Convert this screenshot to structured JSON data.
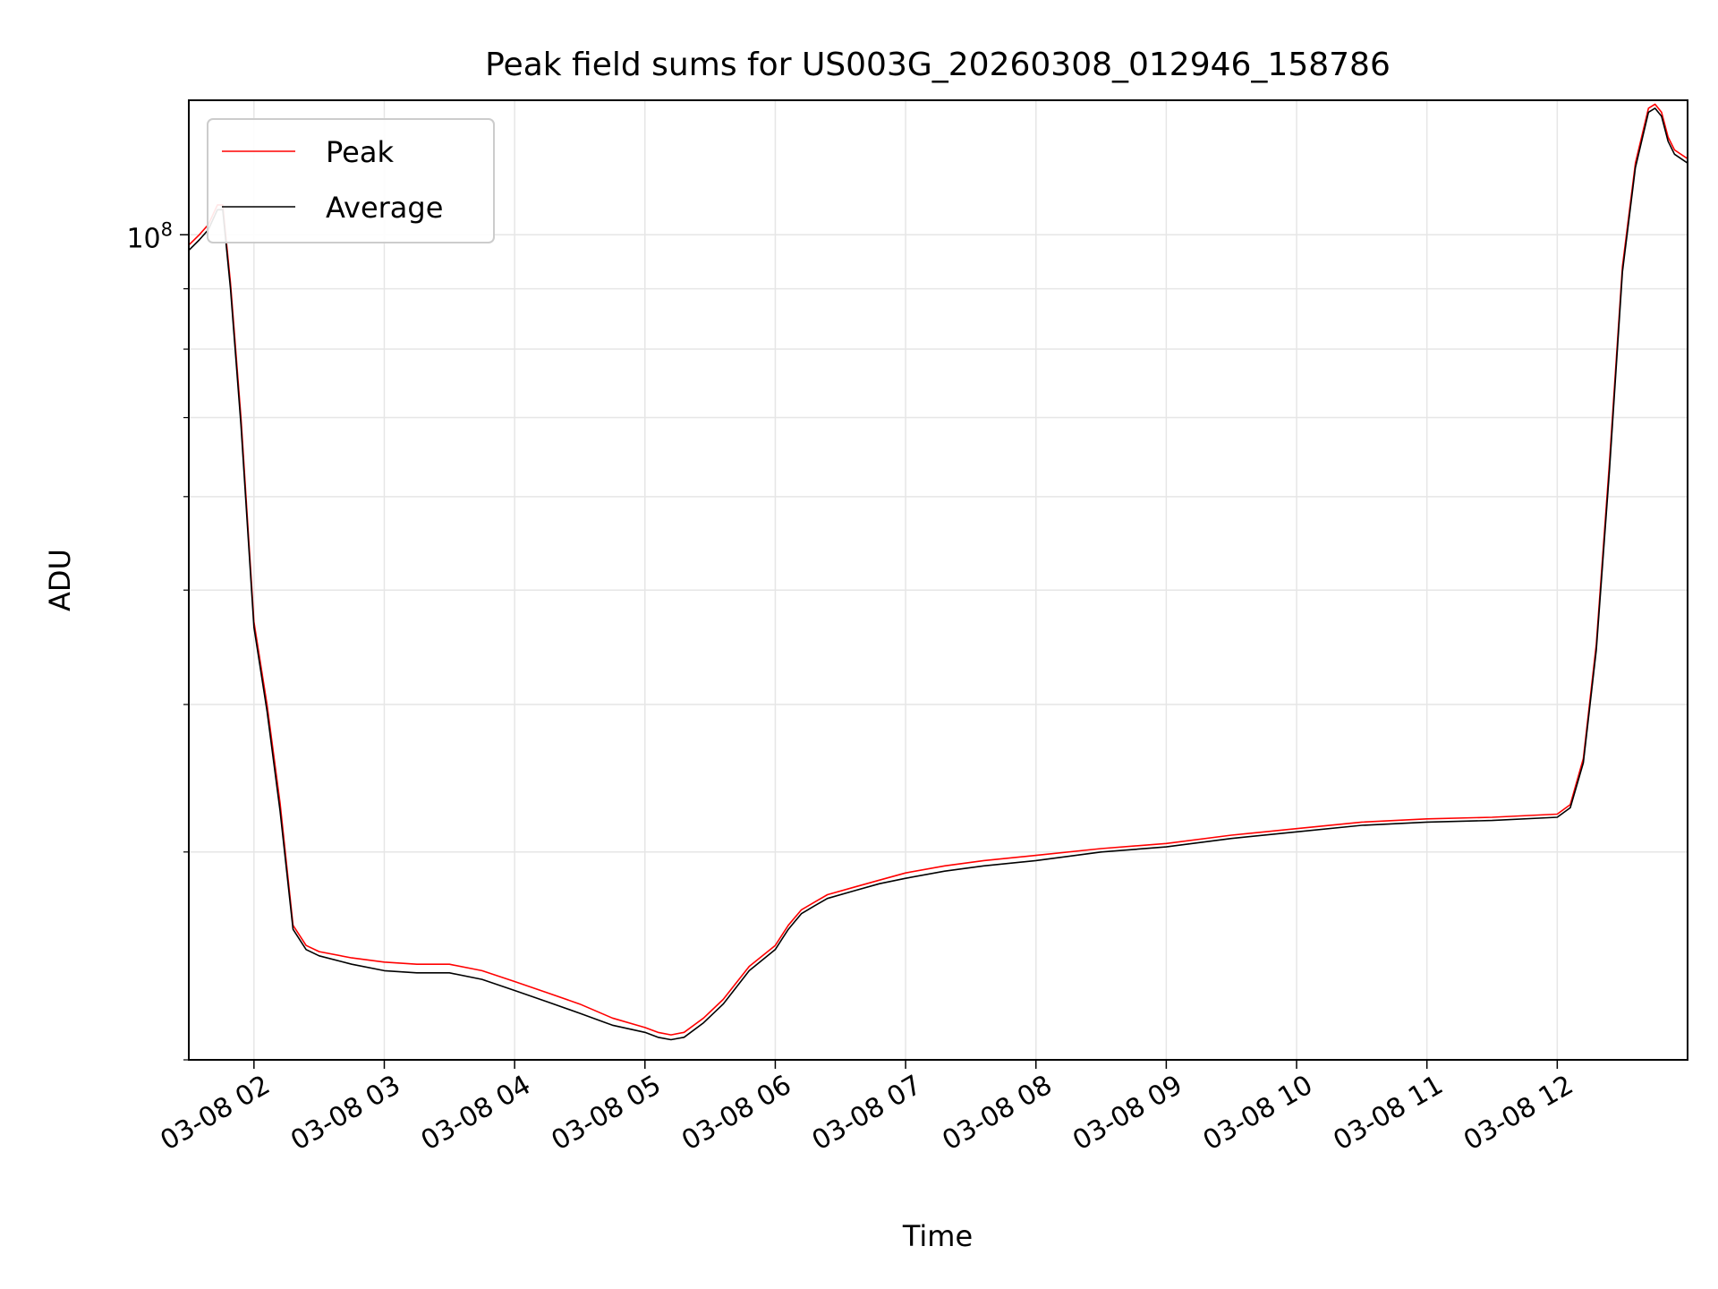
{
  "chart_data": {
    "type": "line",
    "title": "Peak field sums for US003G_20260308_012946_158786",
    "xlabel": "Time",
    "ylabel": "ADU",
    "yscale": "log",
    "ylim": [
      20000000,
      130000000
    ],
    "xlim": [
      1.5,
      13.0
    ],
    "x_ticks": [
      {
        "value": 2,
        "label": "03-08 02"
      },
      {
        "value": 3,
        "label": "03-08 03"
      },
      {
        "value": 4,
        "label": "03-08 04"
      },
      {
        "value": 5,
        "label": "03-08 05"
      },
      {
        "value": 6,
        "label": "03-08 06"
      },
      {
        "value": 7,
        "label": "03-08 07"
      },
      {
        "value": 8,
        "label": "03-08 08"
      },
      {
        "value": 9,
        "label": "03-08 09"
      },
      {
        "value": 10,
        "label": "03-08 10"
      },
      {
        "value": 11,
        "label": "03-08 11"
      },
      {
        "value": 12,
        "label": "03-08 12"
      }
    ],
    "y_major_tick": {
      "value": 100000000,
      "base": "10",
      "exponent": "8"
    },
    "y_minor_ticks": [
      20000000,
      30000000,
      40000000,
      50000000,
      60000000,
      70000000,
      80000000,
      90000000
    ],
    "grid": true,
    "legend_position": "top-left",
    "x_unit": "hours since 03-08 00:00",
    "series": [
      {
        "name": "Peak",
        "color": "#ff0000",
        "x": [
          1.5,
          1.58,
          1.65,
          1.72,
          1.76,
          1.82,
          1.9,
          2.0,
          2.1,
          2.2,
          2.3,
          2.4,
          2.5,
          2.75,
          3.0,
          3.25,
          3.5,
          3.75,
          4.0,
          4.25,
          4.5,
          4.75,
          5.0,
          5.1,
          5.2,
          5.3,
          5.45,
          5.6,
          5.8,
          6.0,
          6.05,
          6.1,
          6.2,
          6.3,
          6.4,
          6.6,
          6.8,
          7.0,
          7.3,
          7.6,
          8.0,
          8.5,
          9.0,
          9.5,
          10.0,
          10.5,
          11.0,
          11.5,
          12.0,
          12.1,
          12.2,
          12.3,
          12.4,
          12.5,
          12.6,
          12.7,
          12.75,
          12.8,
          12.85,
          12.9,
          13.0
        ],
        "y": [
          98000000,
          100000000,
          102000000,
          106000000,
          106000000,
          91000000,
          70000000,
          47000000,
          40000000,
          33000000,
          26000000,
          25000000,
          24700000,
          24400000,
          24200000,
          24100000,
          24100000,
          23800000,
          23300000,
          22800000,
          22300000,
          21700000,
          21300000,
          21100000,
          21000000,
          21100000,
          21700000,
          22500000,
          24000000,
          25000000,
          25500000,
          26000000,
          26800000,
          27200000,
          27600000,
          28000000,
          28400000,
          28800000,
          29200000,
          29500000,
          29800000,
          30200000,
          30500000,
          31000000,
          31400000,
          31800000,
          32000000,
          32100000,
          32300000,
          32900000,
          36000000,
          45000000,
          64000000,
          94000000,
          115000000,
          128000000,
          129000000,
          127000000,
          121000000,
          118000000,
          116000000
        ]
      },
      {
        "name": "Average",
        "color": "#000000",
        "x": [
          1.5,
          1.58,
          1.65,
          1.72,
          1.76,
          1.82,
          1.9,
          2.0,
          2.1,
          2.2,
          2.3,
          2.4,
          2.5,
          2.75,
          3.0,
          3.25,
          3.5,
          3.75,
          4.0,
          4.25,
          4.5,
          4.75,
          5.0,
          5.1,
          5.2,
          5.3,
          5.45,
          5.6,
          5.8,
          6.0,
          6.05,
          6.1,
          6.2,
          6.3,
          6.4,
          6.6,
          6.8,
          7.0,
          7.3,
          7.6,
          8.0,
          8.5,
          9.0,
          9.5,
          10.0,
          10.5,
          11.0,
          11.5,
          12.0,
          12.1,
          12.2,
          12.3,
          12.4,
          12.5,
          12.6,
          12.7,
          12.75,
          12.8,
          12.85,
          12.9,
          13.0
        ],
        "y": [
          97000000,
          99000000,
          101000000,
          105000000,
          105000000,
          90000000,
          69000000,
          46500000,
          39500000,
          32500000,
          25800000,
          24800000,
          24500000,
          24100000,
          23800000,
          23700000,
          23700000,
          23400000,
          22900000,
          22400000,
          21900000,
          21400000,
          21100000,
          20900000,
          20800000,
          20900000,
          21500000,
          22300000,
          23800000,
          24800000,
          25300000,
          25800000,
          26600000,
          27000000,
          27400000,
          27800000,
          28200000,
          28500000,
          28900000,
          29200000,
          29500000,
          30000000,
          30300000,
          30800000,
          31200000,
          31600000,
          31800000,
          31900000,
          32100000,
          32700000,
          35700000,
          44500000,
          63000000,
          93000000,
          114000000,
          127000000,
          128000000,
          126000000,
          120000000,
          117000000,
          115000000
        ]
      }
    ]
  }
}
